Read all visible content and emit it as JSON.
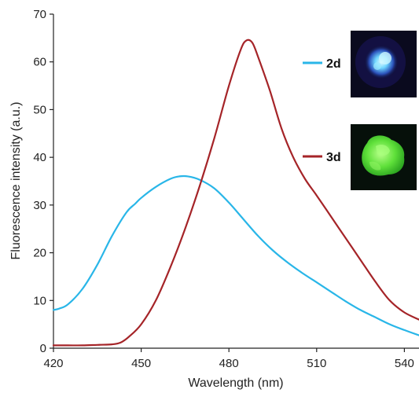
{
  "chart_data": {
    "type": "line",
    "title": "",
    "xlabel": "Wavelength (nm)",
    "ylabel": "Fluorescence intensity (a.u.)",
    "xlim": [
      420,
      545
    ],
    "ylim": [
      0,
      70
    ],
    "xticks": [
      420,
      450,
      480,
      510,
      540
    ],
    "yticks": [
      0,
      10,
      20,
      30,
      40,
      50,
      60,
      70
    ],
    "grid": false,
    "legend_position": "right",
    "series": [
      {
        "name": "2d",
        "color": "#29b6e8",
        "x": [
          420,
          422,
          425,
          430,
          435,
          440,
          445,
          448,
          450,
          455,
          460,
          463,
          466,
          470,
          475,
          480,
          485,
          490,
          495,
          500,
          505,
          510,
          515,
          520,
          525,
          530,
          535,
          540,
          545
        ],
        "y": [
          8.0,
          8.3,
          9.2,
          12.5,
          17.5,
          23.5,
          28.5,
          30.3,
          31.5,
          33.8,
          35.5,
          36.0,
          36.0,
          35.3,
          33.5,
          30.5,
          27.0,
          23.5,
          20.5,
          18.0,
          15.8,
          13.8,
          11.8,
          9.8,
          8.0,
          6.5,
          5.0,
          3.8,
          2.7
        ]
      },
      {
        "name": "3d",
        "color": "#a52428",
        "x": [
          420,
          425,
          430,
          435,
          440,
          443,
          446,
          450,
          455,
          460,
          465,
          470,
          475,
          480,
          484,
          486,
          488,
          490,
          494,
          498,
          502,
          506,
          510,
          515,
          520,
          525,
          530,
          535,
          540,
          545
        ],
        "y": [
          0.6,
          0.6,
          0.6,
          0.7,
          0.8,
          1.2,
          2.5,
          5.0,
          10.0,
          17.0,
          25.0,
          34.0,
          44.0,
          55.0,
          62.5,
          64.5,
          64.0,
          61.0,
          54.0,
          46.0,
          40.0,
          35.5,
          32.0,
          27.5,
          23.0,
          18.5,
          14.0,
          10.0,
          7.5,
          6.0
        ]
      }
    ],
    "legend": [
      {
        "label": "2d",
        "color": "#29b6e8",
        "photo": "blue-fluorescence-photo"
      },
      {
        "label": "3d",
        "color": "#a52428",
        "photo": "green-fluorescence-photo"
      }
    ]
  }
}
